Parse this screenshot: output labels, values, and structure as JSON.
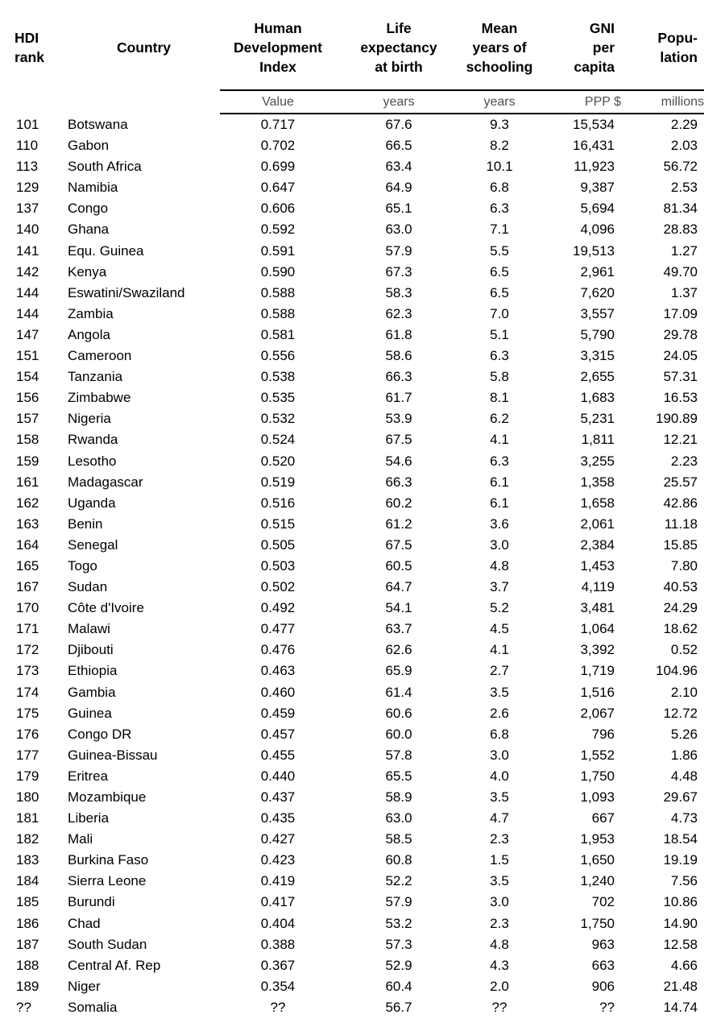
{
  "table": {
    "columns": [
      {
        "id": "rank",
        "header": "HDI\nrank",
        "subheader": ""
      },
      {
        "id": "country",
        "header": "Country",
        "subheader": ""
      },
      {
        "id": "hdi",
        "header": "Human\nDevelopment\nIndex",
        "subheader": "Value"
      },
      {
        "id": "life",
        "header": "Life\nexpectancy\nat birth",
        "subheader": "years"
      },
      {
        "id": "school",
        "header": "Mean\nyears of\nschooling",
        "subheader": "years"
      },
      {
        "id": "gni",
        "header": "GNI\nper\ncapita",
        "subheader": "PPP $"
      },
      {
        "id": "pop",
        "header": "Popu-\nlation",
        "subheader": "millions"
      }
    ],
    "rows": [
      [
        "101",
        "Botswana",
        "0.717",
        "67.6",
        "9.3",
        "15,534",
        "2.29"
      ],
      [
        "110",
        "Gabon",
        "0.702",
        "66.5",
        "8.2",
        "16,431",
        "2.03"
      ],
      [
        "113",
        "South Africa",
        "0.699",
        "63.4",
        "10.1",
        "11,923",
        "56.72"
      ],
      [
        "129",
        "Namibia",
        "0.647",
        "64.9",
        "6.8",
        "9,387",
        "2.53"
      ],
      [
        "137",
        "Congo",
        "0.606",
        "65.1",
        "6.3",
        "5,694",
        "81.34"
      ],
      [
        "140",
        "Ghana",
        "0.592",
        "63.0",
        "7.1",
        "4,096",
        "28.83"
      ],
      [
        "141",
        "Equ. Guinea",
        "0.591",
        "57.9",
        "5.5",
        "19,513",
        "1.27"
      ],
      [
        "142",
        "Kenya",
        "0.590",
        "67.3",
        "6.5",
        "2,961",
        "49.70"
      ],
      [
        "144",
        "Eswatini/Swaziland",
        "0.588",
        "58.3",
        "6.5",
        "7,620",
        "1.37"
      ],
      [
        "144",
        "Zambia",
        "0.588",
        "62.3",
        "7.0",
        "3,557",
        "17.09"
      ],
      [
        "147",
        "Angola",
        "0.581",
        "61.8",
        "5.1",
        "5,790",
        "29.78"
      ],
      [
        "151",
        "Cameroon",
        "0.556",
        "58.6",
        "6.3",
        "3,315",
        "24.05"
      ],
      [
        "154",
        "Tanzania",
        "0.538",
        "66.3",
        "5.8",
        "2,655",
        "57.31"
      ],
      [
        "156",
        "Zimbabwe",
        "0.535",
        "61.7",
        "8.1",
        "1,683",
        "16.53"
      ],
      [
        "157",
        "Nigeria",
        "0.532",
        "53.9",
        "6.2",
        "5,231",
        "190.89"
      ],
      [
        "158",
        "Rwanda",
        "0.524",
        "67.5",
        "4.1",
        "1,811",
        "12.21"
      ],
      [
        "159",
        "Lesotho",
        "0.520",
        "54.6",
        "6.3",
        "3,255",
        "2.23"
      ],
      [
        "161",
        "Madagascar",
        "0.519",
        "66.3",
        "6.1",
        "1,358",
        "25.57"
      ],
      [
        "162",
        "Uganda",
        "0.516",
        "60.2",
        "6.1",
        "1,658",
        "42.86"
      ],
      [
        "163",
        "Benin",
        "0.515",
        "61.2",
        "3.6",
        "2,061",
        "11.18"
      ],
      [
        "164",
        "Senegal",
        "0.505",
        "67.5",
        "3.0",
        "2,384",
        "15.85"
      ],
      [
        "165",
        "Togo",
        "0.503",
        "60.5",
        "4.8",
        "1,453",
        "7.80"
      ],
      [
        "167",
        "Sudan",
        "0.502",
        "64.7",
        "3.7",
        "4,119",
        "40.53"
      ],
      [
        "170",
        "Côte d'Ivoire",
        "0.492",
        "54.1",
        "5.2",
        "3,481",
        "24.29"
      ],
      [
        "171",
        "Malawi",
        "0.477",
        "63.7",
        "4.5",
        "1,064",
        "18.62"
      ],
      [
        "172",
        "Djibouti",
        "0.476",
        "62.6",
        "4.1",
        "3,392",
        "0.52"
      ],
      [
        "173",
        "Ethiopia",
        "0.463",
        "65.9",
        "2.7",
        "1,719",
        "104.96"
      ],
      [
        "174",
        "Gambia",
        "0.460",
        "61.4",
        "3.5",
        "1,516",
        "2.10"
      ],
      [
        "175",
        "Guinea",
        "0.459",
        "60.6",
        "2.6",
        "2,067",
        "12.72"
      ],
      [
        "176",
        "Congo DR",
        "0.457",
        "60.0",
        "6.8",
        "796",
        "5.26"
      ],
      [
        "177",
        "Guinea-Bissau",
        "0.455",
        "57.8",
        "3.0",
        "1,552",
        "1.86"
      ],
      [
        "179",
        "Eritrea",
        "0.440",
        "65.5",
        "4.0",
        "1,750",
        "4.48"
      ],
      [
        "180",
        "Mozambique",
        "0.437",
        "58.9",
        "3.5",
        "1,093",
        "29.67"
      ],
      [
        "181",
        "Liberia",
        "0.435",
        "63.0",
        "4.7",
        "667",
        "4.73"
      ],
      [
        "182",
        "Mali",
        "0.427",
        "58.5",
        "2.3",
        "1,953",
        "18.54"
      ],
      [
        "183",
        "Burkina Faso",
        "0.423",
        "60.8",
        "1.5",
        "1,650",
        "19.19"
      ],
      [
        "184",
        "Sierra Leone",
        "0.419",
        "52.2",
        "3.5",
        "1,240",
        "7.56"
      ],
      [
        "185",
        "Burundi",
        "0.417",
        "57.9",
        "3.0",
        "702",
        "10.86"
      ],
      [
        "186",
        "Chad",
        "0.404",
        "53.2",
        "2.3",
        "1,750",
        "14.90"
      ],
      [
        "187",
        "South Sudan",
        "0.388",
        "57.3",
        "4.8",
        "963",
        "12.58"
      ],
      [
        "188",
        "Central Af. Rep",
        "0.367",
        "52.9",
        "4.3",
        "663",
        "4.66"
      ],
      [
        "189",
        "Niger",
        "0.354",
        "60.4",
        "2.0",
        "906",
        "21.48"
      ],
      [
        "??",
        "Somalia",
        "??",
        "56.7",
        "??",
        "??",
        "14.74"
      ]
    ]
  },
  "colors": {
    "text": "#000000",
    "subheader_text": "#4f4f4f",
    "rule": "#000000",
    "background": "#ffffff"
  }
}
